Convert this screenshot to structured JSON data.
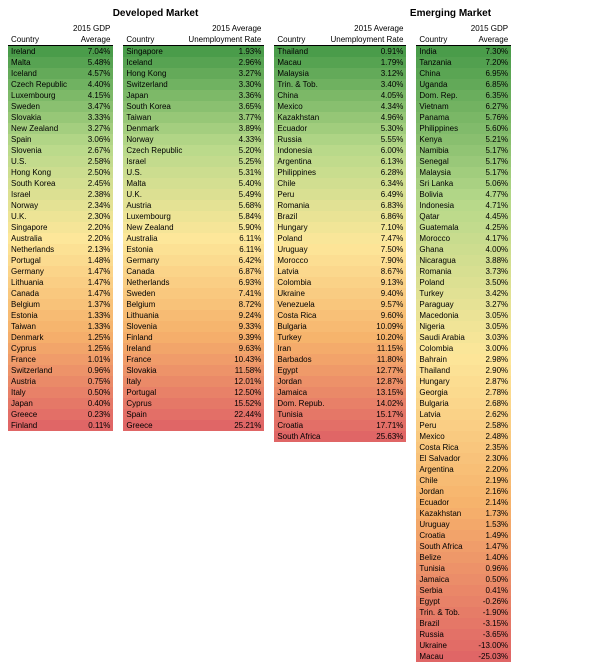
{
  "layout": {
    "title_left": "Developed Market",
    "title_right": "Emerging Market",
    "headers": {
      "country": "Country"
    },
    "color_stops": [
      {
        "t": 0.0,
        "c": "#4a9c4a"
      },
      {
        "t": 0.25,
        "c": "#b7d98a"
      },
      {
        "t": 0.5,
        "c": "#fde79a"
      },
      {
        "t": 0.75,
        "c": "#f6b26b"
      },
      {
        "t": 1.0,
        "c": "#e06666"
      }
    ]
  },
  "tables": [
    {
      "header_val": [
        "2015 GDP",
        "Average"
      ],
      "rows": [
        [
          "Ireland",
          "7.04%"
        ],
        [
          "Malta",
          "5.48%"
        ],
        [
          "Iceland",
          "4.57%"
        ],
        [
          "Czech Republic",
          "4.40%"
        ],
        [
          "Luxembourg",
          "4.15%"
        ],
        [
          "Sweden",
          "3.47%"
        ],
        [
          "Slovakia",
          "3.33%"
        ],
        [
          "New Zealand",
          "3.27%"
        ],
        [
          "Spain",
          "3.06%"
        ],
        [
          "Slovenia",
          "2.67%"
        ],
        [
          "U.S.",
          "2.58%"
        ],
        [
          "Hong Kong",
          "2.50%"
        ],
        [
          "South Korea",
          "2.45%"
        ],
        [
          "Israel",
          "2.38%"
        ],
        [
          "Norway",
          "2.34%"
        ],
        [
          "U.K.",
          "2.30%"
        ],
        [
          "Singapore",
          "2.20%"
        ],
        [
          "Australia",
          "2.20%"
        ],
        [
          "Netherlands",
          "2.13%"
        ],
        [
          "Portugal",
          "1.48%"
        ],
        [
          "Germany",
          "1.47%"
        ],
        [
          "Lithuania",
          "1.47%"
        ],
        [
          "Canada",
          "1.47%"
        ],
        [
          "Belgium",
          "1.37%"
        ],
        [
          "Estonia",
          "1.33%"
        ],
        [
          "Taiwan",
          "1.33%"
        ],
        [
          "Denmark",
          "1.25%"
        ],
        [
          "Cyprus",
          "1.25%"
        ],
        [
          "France",
          "1.01%"
        ],
        [
          "Switzerland",
          "0.96%"
        ],
        [
          "Austria",
          "0.75%"
        ],
        [
          "Italy",
          "0.50%"
        ],
        [
          "Japan",
          "0.40%"
        ],
        [
          "Greece",
          "0.23%"
        ],
        [
          "Finland",
          "0.11%"
        ]
      ]
    },
    {
      "header_val": [
        "2015 Average",
        "Unemployment Rate"
      ],
      "rows": [
        [
          "Singapore",
          "1.93%"
        ],
        [
          "Iceland",
          "2.96%"
        ],
        [
          "Hong Kong",
          "3.27%"
        ],
        [
          "Switzerland",
          "3.30%"
        ],
        [
          "Japan",
          "3.36%"
        ],
        [
          "South Korea",
          "3.65%"
        ],
        [
          "Taiwan",
          "3.77%"
        ],
        [
          "Denmark",
          "3.89%"
        ],
        [
          "Norway",
          "4.33%"
        ],
        [
          "Czech Republic",
          "5.20%"
        ],
        [
          "Israel",
          "5.25%"
        ],
        [
          "U.S.",
          "5.31%"
        ],
        [
          "Malta",
          "5.40%"
        ],
        [
          "U.K.",
          "5.49%"
        ],
        [
          "Austria",
          "5.68%"
        ],
        [
          "Luxembourg",
          "5.84%"
        ],
        [
          "New Zealand",
          "5.90%"
        ],
        [
          "Australia",
          "6.11%"
        ],
        [
          "Estonia",
          "6.11%"
        ],
        [
          "Germany",
          "6.42%"
        ],
        [
          "Canada",
          "6.87%"
        ],
        [
          "Netherlands",
          "6.93%"
        ],
        [
          "Sweden",
          "7.41%"
        ],
        [
          "Belgium",
          "8.72%"
        ],
        [
          "Lithuania",
          "9.24%"
        ],
        [
          "Slovenia",
          "9.33%"
        ],
        [
          "Finland",
          "9.39%"
        ],
        [
          "Ireland",
          "9.63%"
        ],
        [
          "France",
          "10.43%"
        ],
        [
          "Slovakia",
          "11.58%"
        ],
        [
          "Italy",
          "12.01%"
        ],
        [
          "Portugal",
          "12.50%"
        ],
        [
          "Cyprus",
          "15.52%"
        ],
        [
          "Spain",
          "22.44%"
        ],
        [
          "Greece",
          "25.21%"
        ]
      ]
    },
    {
      "header_val": [
        "2015 Average",
        "Unemployment Rate"
      ],
      "rows": [
        [
          "Thailand",
          "0.91%"
        ],
        [
          "Macau",
          "1.79%"
        ],
        [
          "Malaysia",
          "3.12%"
        ],
        [
          "Trin. & Tob.",
          "3.40%"
        ],
        [
          "China",
          "4.05%"
        ],
        [
          "Mexico",
          "4.34%"
        ],
        [
          "Kazakhstan",
          "4.96%"
        ],
        [
          "Ecuador",
          "5.30%"
        ],
        [
          "Russia",
          "5.55%"
        ],
        [
          "Indonesia",
          "6.00%"
        ],
        [
          "Argentina",
          "6.13%"
        ],
        [
          "Philippines",
          "6.28%"
        ],
        [
          "Chile",
          "6.34%"
        ],
        [
          "Peru",
          "6.49%"
        ],
        [
          "Romania",
          "6.83%"
        ],
        [
          "Brazil",
          "6.86%"
        ],
        [
          "Hungary",
          "7.10%"
        ],
        [
          "Poland",
          "7.47%"
        ],
        [
          "Uruguay",
          "7.50%"
        ],
        [
          "Morocco",
          "7.90%"
        ],
        [
          "Latvia",
          "8.67%"
        ],
        [
          "Colombia",
          "9.13%"
        ],
        [
          "Ukraine",
          "9.40%"
        ],
        [
          "Venezuela",
          "9.57%"
        ],
        [
          "Costa Rica",
          "9.60%"
        ],
        [
          "Bulgaria",
          "10.09%"
        ],
        [
          "Turkey",
          "10.20%"
        ],
        [
          "Iran",
          "11.15%"
        ],
        [
          "Barbados",
          "11.80%"
        ],
        [
          "Egypt",
          "12.77%"
        ],
        [
          "Jordan",
          "12.87%"
        ],
        [
          "Jamaica",
          "13.15%"
        ],
        [
          "Dom. Repub.",
          "14.02%"
        ],
        [
          "Tunisia",
          "15.17%"
        ],
        [
          "Croatia",
          "17.71%"
        ],
        [
          "South Africa",
          "25.63%"
        ]
      ]
    },
    {
      "header_val": [
        "2015 GDP",
        "Average"
      ],
      "rows": [
        [
          "India",
          "7.30%"
        ],
        [
          "Tanzania",
          "7.20%"
        ],
        [
          "China",
          "6.95%"
        ],
        [
          "Uganda",
          "6.85%"
        ],
        [
          "Dom. Rep.",
          "6.35%"
        ],
        [
          "Vietnam",
          "6.27%"
        ],
        [
          "Panama",
          "5.76%"
        ],
        [
          "Philippines",
          "5.60%"
        ],
        [
          "Kenya",
          "5.21%"
        ],
        [
          "Namibia",
          "5.17%"
        ],
        [
          "Senegal",
          "5.17%"
        ],
        [
          "Malaysia",
          "5.17%"
        ],
        [
          "Sri Lanka",
          "5.06%"
        ],
        [
          "Bolivia",
          "4.77%"
        ],
        [
          "Indonesia",
          "4.71%"
        ],
        [
          "Qatar",
          "4.45%"
        ],
        [
          "Guatemala",
          "4.25%"
        ],
        [
          "Morocco",
          "4.17%"
        ],
        [
          "Ghana",
          "4.00%"
        ],
        [
          "Nicaragua",
          "3.88%"
        ],
        [
          "Romania",
          "3.73%"
        ],
        [
          "Poland",
          "3.50%"
        ],
        [
          "Turkey",
          "3.42%"
        ],
        [
          "Paraguay",
          "3.27%"
        ],
        [
          "Macedonia",
          "3.05%"
        ],
        [
          "Nigeria",
          "3.05%"
        ],
        [
          "Saudi Arabia",
          "3.03%"
        ],
        [
          "Colombia",
          "3.00%"
        ],
        [
          "Bahrain",
          "2.98%"
        ],
        [
          "Thailand",
          "2.90%"
        ],
        [
          "Hungary",
          "2.87%"
        ],
        [
          "Georgia",
          "2.78%"
        ],
        [
          "Bulgaria",
          "2.68%"
        ],
        [
          "Latvia",
          "2.62%"
        ],
        [
          "Peru",
          "2.58%"
        ],
        [
          "Mexico",
          "2.48%"
        ],
        [
          "Costa Rica",
          "2.35%"
        ],
        [
          "El Salvador",
          "2.30%"
        ],
        [
          "Argentina",
          "2.20%"
        ],
        [
          "Chile",
          "2.19%"
        ],
        [
          "Jordan",
          "2.16%"
        ],
        [
          "Ecuador",
          "2.14%"
        ],
        [
          "Kazakhstan",
          "1.73%"
        ],
        [
          "Uruguay",
          "1.53%"
        ],
        [
          "Croatia",
          "1.49%"
        ],
        [
          "South Africa",
          "1.47%"
        ],
        [
          "Belize",
          "1.40%"
        ],
        [
          "Tunisia",
          "0.96%"
        ],
        [
          "Jamaica",
          "0.50%"
        ],
        [
          "Serbia",
          "0.41%"
        ],
        [
          "Egypt",
          "-0.26%"
        ],
        [
          "Trin. & Tob.",
          "-1.90%"
        ],
        [
          "Brazil",
          "-3.15%"
        ],
        [
          "Russia",
          "-3.65%"
        ],
        [
          "Ukraine",
          "-13.00%"
        ],
        [
          "Macau",
          "-25.03%"
        ]
      ]
    }
  ]
}
